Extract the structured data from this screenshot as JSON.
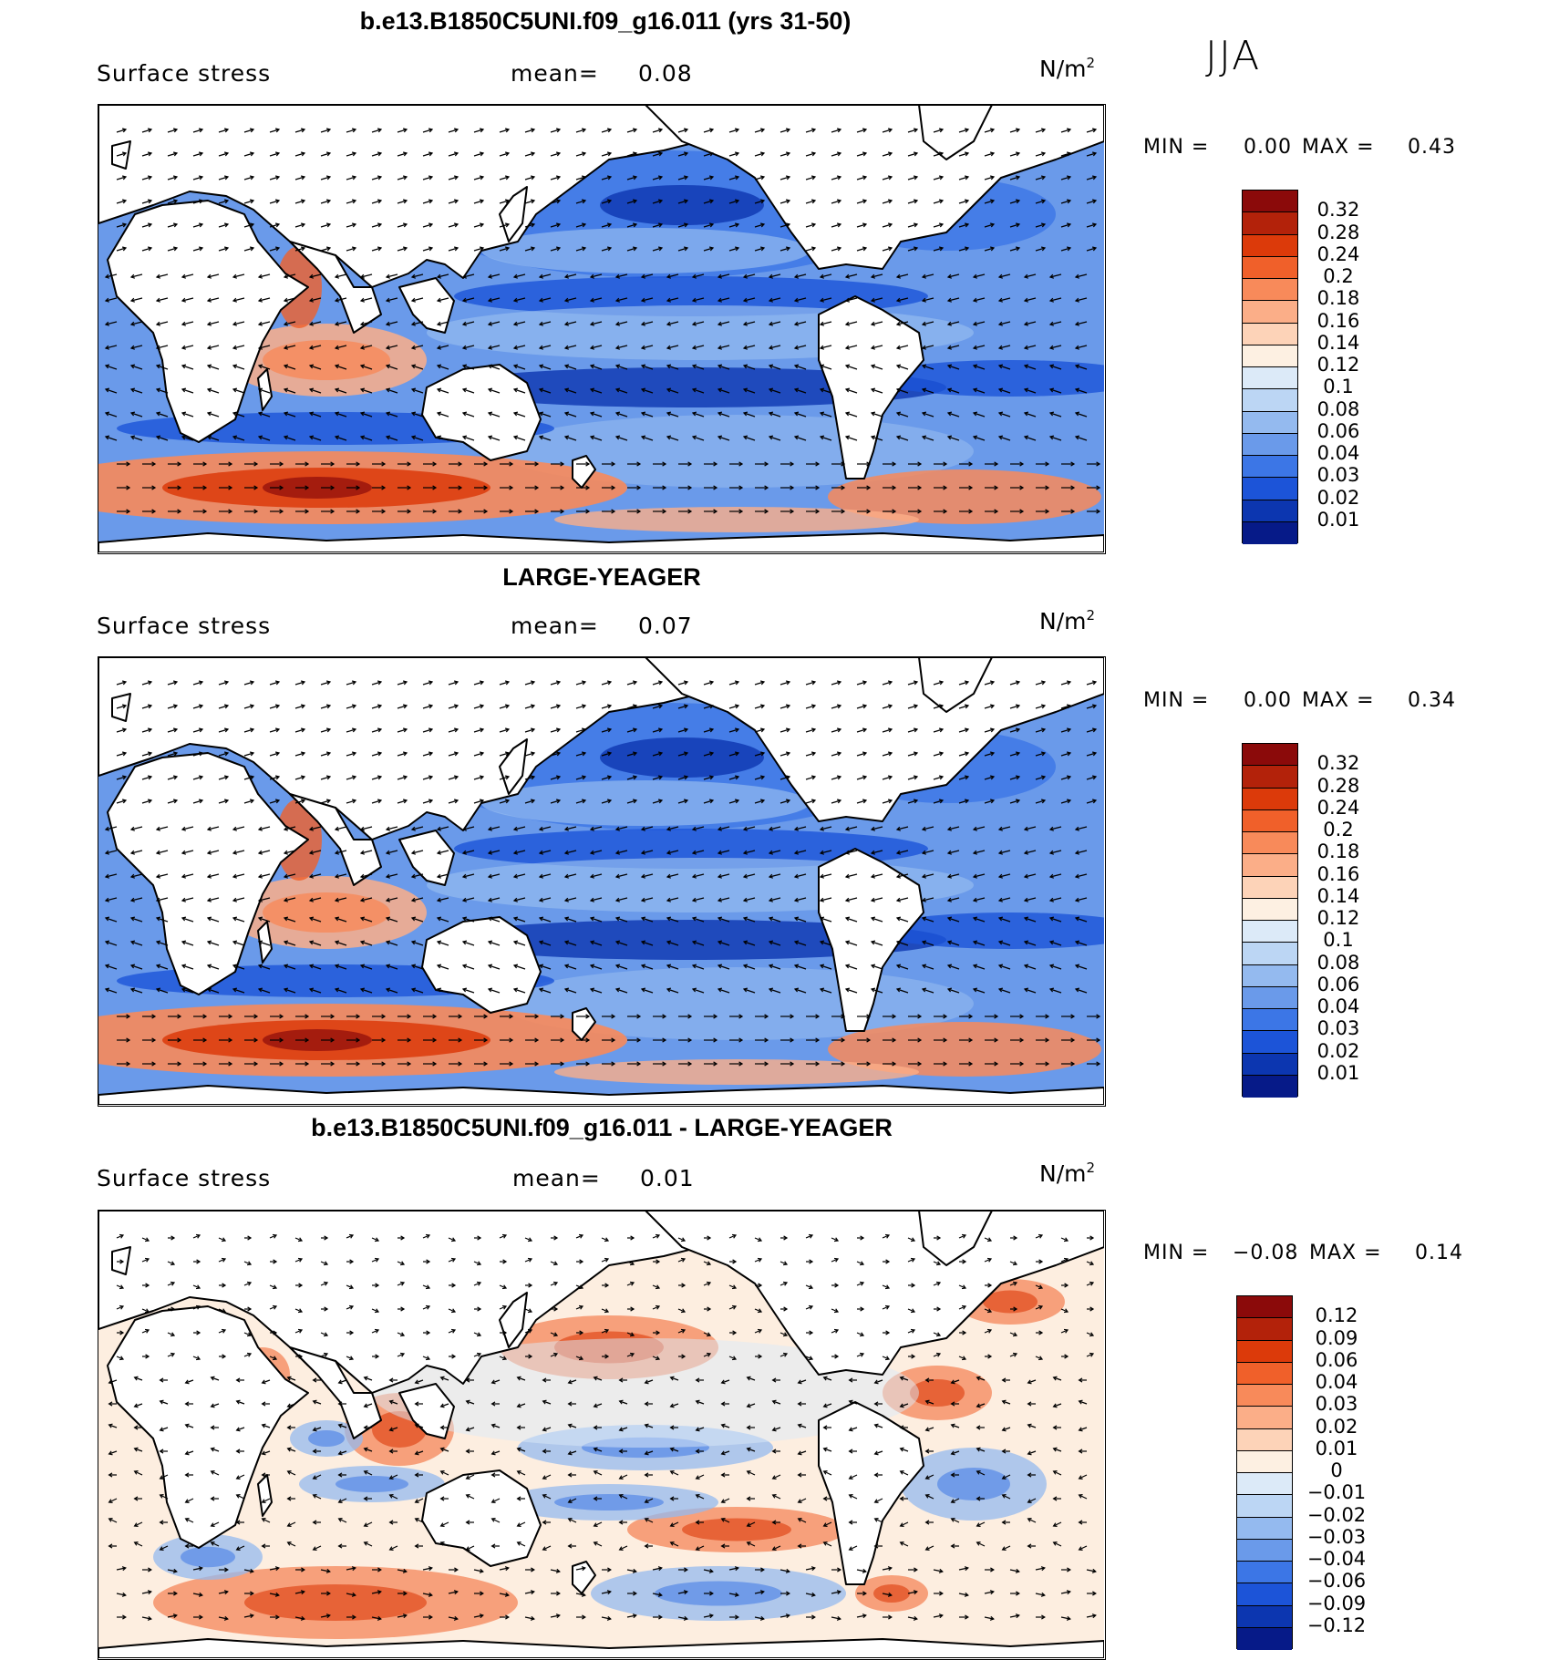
{
  "season": "JJA",
  "panels": [
    {
      "id": "model",
      "title": "b.e13.B1850C5UNI.f09_g16.011 (yrs 31-50)",
      "variable": "Surface stress",
      "mean_label": "mean=",
      "mean_value": "0.08",
      "units_base": "N/m",
      "units_exp": "2",
      "min_label": "MIN =",
      "min_value": "0.00",
      "max_label": "MAX =",
      "max_value": "0.43",
      "colorbar": {
        "labels": [
          "0.32",
          "0.28",
          "0.24",
          "0.2",
          "0.18",
          "0.16",
          "0.14",
          "0.12",
          "0.1",
          "0.08",
          "0.06",
          "0.04",
          "0.03",
          "0.02",
          "0.01"
        ],
        "colors": [
          "#8b0a0a",
          "#b3220a",
          "#dc3a0a",
          "#f0602a",
          "#f88a5a",
          "#fbae88",
          "#fdd3b8",
          "#fdf0e2",
          "#dceaf8",
          "#bcd6f4",
          "#94baef",
          "#6a9aea",
          "#3c76e6",
          "#1c54d8",
          "#0c36b0",
          "#061a88"
        ]
      },
      "map_style": "positive"
    },
    {
      "id": "obs",
      "title": "LARGE-YEAGER",
      "variable": "Surface stress",
      "mean_label": "mean=",
      "mean_value": "0.07",
      "units_base": "N/m",
      "units_exp": "2",
      "min_label": "MIN =",
      "min_value": "0.00",
      "max_label": "MAX =",
      "max_value": "0.34",
      "colorbar": {
        "labels": [
          "0.32",
          "0.28",
          "0.24",
          "0.2",
          "0.18",
          "0.16",
          "0.14",
          "0.12",
          "0.1",
          "0.08",
          "0.06",
          "0.04",
          "0.03",
          "0.02",
          "0.01"
        ],
        "colors": [
          "#8b0a0a",
          "#b3220a",
          "#dc3a0a",
          "#f0602a",
          "#f88a5a",
          "#fbae88",
          "#fdd3b8",
          "#fdf0e2",
          "#dceaf8",
          "#bcd6f4",
          "#94baef",
          "#6a9aea",
          "#3c76e6",
          "#1c54d8",
          "#0c36b0",
          "#061a88"
        ]
      },
      "map_style": "positive"
    },
    {
      "id": "diff",
      "title": "b.e13.B1850C5UNI.f09_g16.011 - LARGE-YEAGER",
      "variable": "Surface stress",
      "mean_label": "mean=",
      "mean_value": "0.01",
      "units_base": "N/m",
      "units_exp": "2",
      "min_label": "MIN =",
      "min_value": "−0.08",
      "max_label": "MAX =",
      "max_value": "0.14",
      "colorbar": {
        "labels": [
          "0.12",
          "0.09",
          "0.06",
          "0.04",
          "0.03",
          "0.02",
          "0.01",
          "0",
          "−0.01",
          "−0.02",
          "−0.03",
          "−0.04",
          "−0.06",
          "−0.09",
          "−0.12"
        ],
        "colors": [
          "#8b0a0a",
          "#b3220a",
          "#dc3a0a",
          "#f0602a",
          "#f88a5a",
          "#fbae88",
          "#fdd3b8",
          "#fdf0e2",
          "#dceaf8",
          "#bcd6f4",
          "#94baef",
          "#6a9aea",
          "#3c76e6",
          "#1c54d8",
          "#0c36b0",
          "#061a88"
        ]
      },
      "map_style": "difference"
    }
  ]
}
